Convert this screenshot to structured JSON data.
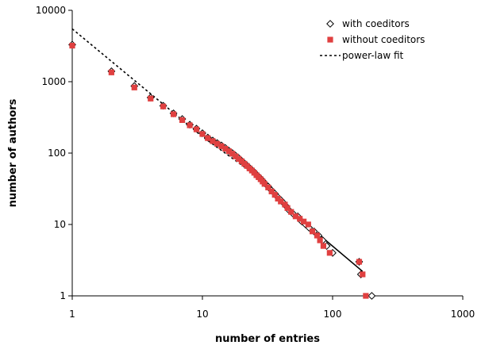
{
  "chart_data": {
    "type": "scatter",
    "xlabel": "number of entries",
    "ylabel": "number of authors",
    "xscale": "log",
    "yscale": "log",
    "xlim": [
      1,
      1000
    ],
    "ylim": [
      1,
      10000
    ],
    "xticks": [
      "1",
      "10",
      "100",
      "1000"
    ],
    "yticks": [
      "1",
      "10",
      "100",
      "1000",
      "10000"
    ],
    "grid": false,
    "legend_position": "top-right",
    "series": [
      {
        "name": "with coeditors",
        "marker": "diamond-open",
        "color": "#000000",
        "points": [
          [
            1,
            3300
          ],
          [
            2,
            1400
          ],
          [
            3,
            870
          ],
          [
            4,
            600
          ],
          [
            5,
            460
          ],
          [
            6,
            360
          ],
          [
            7,
            300
          ],
          [
            8,
            250
          ],
          [
            9,
            220
          ],
          [
            10,
            190
          ],
          [
            11,
            165
          ],
          [
            12,
            150
          ],
          [
            13,
            138
          ],
          [
            14,
            128
          ],
          [
            15,
            118
          ],
          [
            16,
            108
          ],
          [
            17,
            100
          ],
          [
            18,
            92
          ],
          [
            19,
            85
          ],
          [
            20,
            78
          ],
          [
            21,
            72
          ],
          [
            22,
            67
          ],
          [
            23,
            62
          ],
          [
            24,
            58
          ],
          [
            25,
            54
          ],
          [
            26,
            50
          ],
          [
            27,
            47
          ],
          [
            28,
            44
          ],
          [
            29,
            41
          ],
          [
            30,
            38
          ],
          [
            32,
            34
          ],
          [
            34,
            30
          ],
          [
            36,
            27
          ],
          [
            38,
            24
          ],
          [
            40,
            22
          ],
          [
            42,
            20
          ],
          [
            44,
            18
          ],
          [
            46,
            16
          ],
          [
            50,
            14
          ],
          [
            54,
            13
          ],
          [
            58,
            11
          ],
          [
            62,
            10
          ],
          [
            66,
            9
          ],
          [
            72,
            8
          ],
          [
            78,
            7
          ],
          [
            84,
            6
          ],
          [
            90,
            5
          ],
          [
            100,
            4
          ],
          [
            160,
            3
          ],
          [
            165,
            2
          ],
          [
            200,
            1
          ]
        ]
      },
      {
        "name": "without coeditors",
        "marker": "square-filled",
        "color": "#e04040",
        "points": [
          [
            1,
            3200
          ],
          [
            2,
            1350
          ],
          [
            3,
            830
          ],
          [
            4,
            580
          ],
          [
            5,
            450
          ],
          [
            6,
            350
          ],
          [
            7,
            290
          ],
          [
            8,
            245
          ],
          [
            9,
            215
          ],
          [
            10,
            185
          ],
          [
            11,
            162
          ],
          [
            12,
            147
          ],
          [
            13,
            135
          ],
          [
            14,
            125
          ],
          [
            15,
            115
          ],
          [
            16,
            106
          ],
          [
            17,
            98
          ],
          [
            18,
            90
          ],
          [
            19,
            83
          ],
          [
            20,
            77
          ],
          [
            21,
            71
          ],
          [
            22,
            66
          ],
          [
            23,
            61
          ],
          [
            24,
            57
          ],
          [
            25,
            53
          ],
          [
            26,
            49
          ],
          [
            27,
            46
          ],
          [
            28,
            43
          ],
          [
            29,
            40
          ],
          [
            30,
            37
          ],
          [
            32,
            33
          ],
          [
            34,
            29
          ],
          [
            36,
            26
          ],
          [
            38,
            23
          ],
          [
            40,
            21
          ],
          [
            43,
            19
          ],
          [
            45,
            17
          ],
          [
            48,
            15
          ],
          [
            52,
            13
          ],
          [
            56,
            12
          ],
          [
            60,
            11
          ],
          [
            65,
            10
          ],
          [
            70,
            8
          ],
          [
            76,
            7
          ],
          [
            80,
            6
          ],
          [
            85,
            5
          ],
          [
            95,
            4
          ],
          [
            160,
            3
          ],
          [
            170,
            2
          ],
          [
            180,
            1
          ]
        ]
      }
    ],
    "fit": {
      "name": "power-law fit",
      "style": "dotted",
      "color": "#000000",
      "points": [
        [
          1,
          5500
        ],
        [
          10,
          170
        ],
        [
          30,
          40
        ],
        [
          50,
          14
        ]
      ]
    },
    "tail_line": {
      "style": "solid",
      "color": "#000000",
      "points": [
        [
          50,
          14
        ],
        [
          80,
          7
        ],
        [
          170,
          2.2
        ]
      ]
    }
  }
}
